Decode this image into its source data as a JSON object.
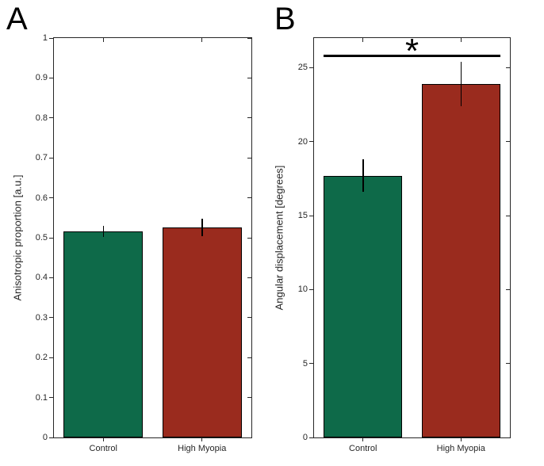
{
  "style": {
    "axis_color": "#262626",
    "text_color": "#262626",
    "background": "#ffffff",
    "significance_color": "#000000"
  },
  "chart_data": [
    {
      "type": "bar",
      "panel_label": "A",
      "title": "",
      "xlabel": "",
      "ylabel": "Anisotropic proportion [a.u.]",
      "categories": [
        "Control",
        "High Myopia"
      ],
      "values": [
        0.515,
        0.525
      ],
      "errors": [
        0.014,
        0.022
      ],
      "ylim": [
        0,
        1
      ],
      "ytick_labels": [
        "0",
        "0.1",
        "0.2",
        "0.3",
        "0.4",
        "0.5",
        "0.6",
        "0.7",
        "0.8",
        "0.9",
        "1"
      ],
      "bar_colors": [
        "#0e6a49",
        "#9a2b1e"
      ],
      "bar_edge_color": "#000000",
      "error_color": "#000000",
      "grid": false,
      "legend": null
    },
    {
      "type": "bar",
      "panel_label": "B",
      "title": "",
      "xlabel": "",
      "ylabel": "Angular displacement [degrees]",
      "categories": [
        "Control",
        "High Myopia"
      ],
      "values": [
        17.7,
        23.9
      ],
      "errors": [
        1.1,
        1.5
      ],
      "ylim": [
        0,
        27
      ],
      "ytick_labels": [
        "0",
        "5",
        "10",
        "15",
        "20",
        "25"
      ],
      "bar_colors": [
        "#0e6a49",
        "#9a2b1e"
      ],
      "bar_edge_color": "#000000",
      "error_color": "#000000",
      "grid": false,
      "legend": null,
      "significance": {
        "symbol": "*",
        "line_y": 25.8,
        "between": [
          "Control",
          "High Myopia"
        ]
      }
    }
  ]
}
